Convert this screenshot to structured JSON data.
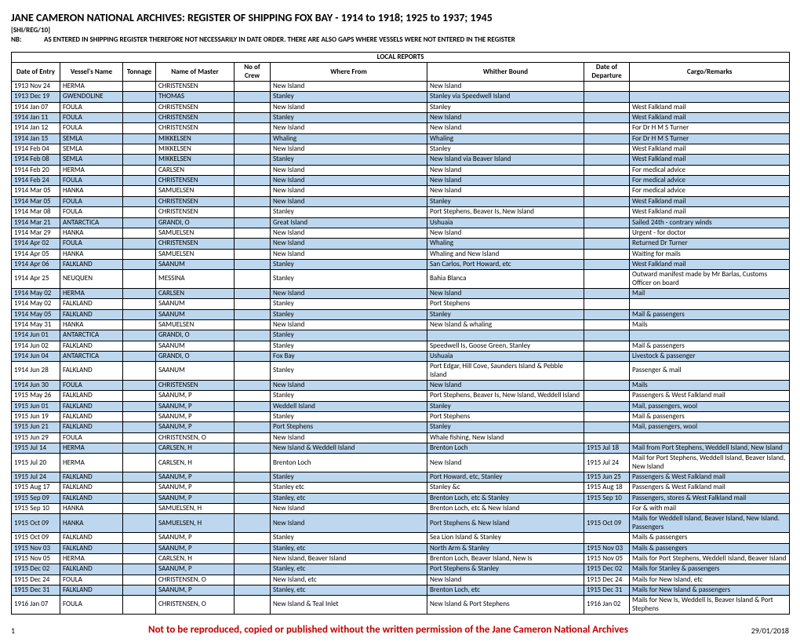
{
  "title": "JANE CAMERON NATIONAL ARCHIVES: REGISTER OF SHIPPING FOX BAY - 1914 to 1918; 1925 to 1937; 1945",
  "ref": "[SHI/REG/10]",
  "note_label": "NB:",
  "note_text": "AS ENTERED IN SHIPPING REGISTER THEREFORE NOT NECESSARILY IN DATE ORDER. THERE ARE ALSO GAPS WHERE VESSELS WERE NOT ENTERED IN THE REGISTER",
  "section_header": "LOCAL REPORTS",
  "columns": [
    "Date of Entry",
    "Vessel's Name",
    "Tonnage",
    "Name of Master",
    "No of Crew",
    "Where From",
    "Whither Bound",
    "Date of Departure",
    "Cargo/Remarks"
  ],
  "stripe_color": "#bdd7ee",
  "rows": [
    [
      "1913 Nov 24",
      "HERMA",
      "",
      "CHRISTENSEN",
      "",
      "New Island",
      "New Island",
      "",
      ""
    ],
    [
      "1913 Dec 19",
      "GWENDOLINE",
      "",
      "THOMAS",
      "",
      "Stanley",
      "Stanley via Speedwell Island",
      "",
      ""
    ],
    [
      "1914 Jan 07",
      "FOULA",
      "",
      "CHRISTENSEN",
      "",
      "New Island",
      "Stanley",
      "",
      "West Falkland mail"
    ],
    [
      "1914 Jan 11",
      "FOULA",
      "",
      "CHRISTENSEN",
      "",
      "Stanley",
      "New Island",
      "",
      "West Falkland mail"
    ],
    [
      "1914 Jan 12",
      "FOULA",
      "",
      "CHRISTENSEN",
      "",
      "New Island",
      "New Island",
      "",
      "For Dr H M S Turner"
    ],
    [
      "1914 Jan 15",
      "SEMLA",
      "",
      "MIKKELSEN",
      "",
      "Whaling",
      "Whaling",
      "",
      "For Dr H M S Turner"
    ],
    [
      "1914 Feb 04",
      "SEMLA",
      "",
      "MIKKELSEN",
      "",
      "New Island",
      "Stanley",
      "",
      "West Falkland mail"
    ],
    [
      "1914 Feb 08",
      "SEMLA",
      "",
      "MIKKELSEN",
      "",
      "Stanley",
      "New Island via Beaver Island",
      "",
      "West Falkland mail"
    ],
    [
      "1914 Feb 20",
      "HERMA",
      "",
      "CARLSEN",
      "",
      "New Island",
      "New Island",
      "",
      "For medical advice"
    ],
    [
      "1914 Feb 24",
      "FOULA",
      "",
      "CHRISTENSEN",
      "",
      "New Island",
      "New Island",
      "",
      "For medical advice"
    ],
    [
      "1914 Mar 05",
      "HANKA",
      "",
      "SAMUELSEN",
      "",
      "New Island",
      "New Island",
      "",
      "For medical advice"
    ],
    [
      "1914 Mar 05",
      "FOULA",
      "",
      "CHRISTENSEN",
      "",
      "New Island",
      "Stanley",
      "",
      "West Falkland mail"
    ],
    [
      "1914 Mar 08",
      "FOULA",
      "",
      "CHRISTENSEN",
      "",
      "Stanley",
      "Port Stephens, Beaver Is, New Island",
      "",
      "West Falkland mail"
    ],
    [
      "1914 Mar 21",
      "ANTARCTICA",
      "",
      "GRANDI, O",
      "",
      "Great Island",
      "Ushuaia",
      "",
      "Sailed 24th - contrary winds"
    ],
    [
      "1914 Mar 29",
      "HANKA",
      "",
      "SAMUELSEN",
      "",
      "New Island",
      "New Island",
      "",
      "Urgent - for doctor"
    ],
    [
      "1914 Apr 02",
      "FOULA",
      "",
      "CHRISTENSEN",
      "",
      "New Island",
      "Whaling",
      "",
      "Returned Dr Turner"
    ],
    [
      "1914 Apr 05",
      "HANKA",
      "",
      "SAMUELSEN",
      "",
      "New Island",
      "Whaling and New Island",
      "",
      "Waiting for mails"
    ],
    [
      "1914 Apr 06",
      "FALKLAND",
      "",
      "SAANUM",
      "",
      "Stanley",
      "San Carlos, Port Howard, etc",
      "",
      "West Falkland mail"
    ],
    [
      "1914 Apr 25",
      "NEUQUEN",
      "",
      "MESSINA",
      "",
      "Stanley",
      "Bahia Blanca",
      "",
      "Outward manifest made by Mr Barlas, Customs Officer on board"
    ],
    [
      "1914 May 02",
      "HERMA",
      "",
      "CARLSEN",
      "",
      "New Island",
      "New Island",
      "",
      "Mail"
    ],
    [
      "1914 May 02",
      "FALKLAND",
      "",
      "SAANUM",
      "",
      "Stanley",
      "Port Stephens",
      "",
      ""
    ],
    [
      "1914 May 05",
      "FALKLAND",
      "",
      "SAANUM",
      "",
      "Stanley",
      "Stanley",
      "",
      "Mail & passengers"
    ],
    [
      "1914 May 31",
      "HANKA",
      "",
      "SAMUELSEN",
      "",
      "New Island",
      "New Island & whaling",
      "",
      "Mails"
    ],
    [
      "1914 Jun 01",
      "ANTARCTICA",
      "",
      "GRANDI, O",
      "",
      "Stanley",
      "",
      "",
      ""
    ],
    [
      "1914 Jun 02",
      "FALKLAND",
      "",
      "SAANUM",
      "",
      "Stanley",
      "Speedwell Is, Goose Green, Stanley",
      "",
      "Mail & passengers"
    ],
    [
      "1914 Jun 04",
      "ANTARCTICA",
      "",
      "GRANDI, O",
      "",
      "Fox Bay",
      "Ushuaia",
      "",
      "Livestock & passenger"
    ],
    [
      "1914 Jun 28",
      "FALKLAND",
      "",
      "SAANUM",
      "",
      "Stanley",
      "Port Edgar, Hill Cove, Saunders Island & Pebble Island",
      "",
      "Passenger & mail"
    ],
    [
      "1914 Jun 30",
      "FOULA",
      "",
      "CHRISTENSEN",
      "",
      "New Island",
      "New Island",
      "",
      "Mails"
    ],
    [
      "1915 May 26",
      "FALKLAND",
      "",
      "SAANUM, P",
      "",
      "Stanley",
      "Port Stephens, Beaver Is, New Island, Weddell Island",
      "",
      "Passengers & West Falkland mail"
    ],
    [
      "1915 Jun 01",
      "FALKLAND",
      "",
      "SAANUM, P",
      "",
      "Weddell Island",
      "Stanley",
      "",
      "Mail, passengers, wool"
    ],
    [
      "1915 Jun 19",
      "FALKLAND",
      "",
      "SAANUM, P",
      "",
      "Stanley",
      "Port Stephens",
      "",
      "Mail & passengers"
    ],
    [
      "1915 Jun 21",
      "FALKLAND",
      "",
      "SAANUM, P",
      "",
      "Port Stephens",
      "Stanley",
      "",
      "Mail, passengers, wool"
    ],
    [
      "1915 Jun 29",
      "FOULA",
      "",
      "CHRISTENSEN, O",
      "",
      "New Island",
      "Whale fishing, New Island",
      "",
      ""
    ],
    [
      "1915 Jul 14",
      "HERMA",
      "",
      "CARLSEN, H",
      "",
      "New Island & Weddell Island",
      "Brenton Loch",
      "1915 Jul 18",
      "Mail from Port Stephens, Weddell Island, New Island"
    ],
    [
      "1915 Jul 20",
      "HERMA",
      "",
      "CARLSEN, H",
      "",
      "Brenton Loch",
      "New Island",
      "1915 Jul 24",
      "Mail for Port Stephens, Weddell Island, Beaver Island, New Island"
    ],
    [
      "1915 Jul 24",
      "FALKLAND",
      "",
      "SAANUM, P",
      "",
      "Stanley",
      "Port Howard, etc, Stanley",
      "1915 Jun 25",
      "Passengers & West Falkland mail"
    ],
    [
      "1915 Aug 17",
      "FALKLAND",
      "",
      "SAANUM, P",
      "",
      "Stanley etc",
      "Stanley &c",
      "1915 Aug 18",
      "Passengers & West Falkland mail"
    ],
    [
      "1915 Sep 09",
      "FALKLAND",
      "",
      "SAANUM, P",
      "",
      "Stanley, etc",
      "Brenton Loch, etc & Stanley",
      "1915 Sep 10",
      "Passengers, stores & West Falkland mail"
    ],
    [
      "1915 Sep 10",
      "HANKA",
      "",
      "SAMUELSEN, H",
      "",
      "New Island",
      "Brenton Loch, etc & New Island",
      "",
      "For & with mail"
    ],
    [
      "1915 Oct 09",
      "HANKA",
      "",
      "SAMUELSEN, H",
      "",
      "New Island",
      "Port Stephens & New Island",
      "1915 Oct 09",
      "Mails for Weddell Island, Beaver Island, New Island. Passengers"
    ],
    [
      "1915 Oct 09",
      "FALKLAND",
      "",
      "SAANUM, P",
      "",
      "Stanley",
      "Sea Lion Island & Stanley",
      "",
      "Mails & passengers"
    ],
    [
      "1915 Nov 03",
      "FALKLAND",
      "",
      "SAANUM, P",
      "",
      "Stanley, etc",
      "North Arm & Stanley",
      "1915 Nov 03",
      "Mails & passengers"
    ],
    [
      "1915 Nov 05",
      "HERMA",
      "",
      "CARLSEN, H",
      "",
      "New Island, Beaver Island",
      "Brenton Loch, Beaver Island, New Is",
      "1915 Nov 05",
      "Mails for Port Stephens, Weddell Island, Beaver Island"
    ],
    [
      "1915 Dec 02",
      "FALKLAND",
      "",
      "SAANUM, P",
      "",
      "Stanley, etc",
      "Port Stephens & Stanley",
      "1915 Dec 02",
      "Mails for Stanley & passengers"
    ],
    [
      "1915 Dec 24",
      "FOULA",
      "",
      "CHRISTENSEN, O",
      "",
      "New Island, etc",
      "New Island",
      "1915 Dec 24",
      "Mails for New Island, etc"
    ],
    [
      "1915 Dec 31",
      "FALKLAND",
      "",
      "SAANUM, P",
      "",
      "Stanley, etc",
      "Brenton Loch, etc",
      "1915 Dec 31",
      "Mails for New Island & passengers"
    ],
    [
      "1916 Jan 07",
      "FOULA",
      "",
      "CHRISTENSEN, O",
      "",
      "New Island & Teal Inlet",
      "New Island & Port Stephens",
      "1916 Jan 02",
      "Mails for New Is, Weddell Is, Beaver Island & Port Stephens"
    ]
  ],
  "footer": {
    "page": "1",
    "copy": "Not to be reproduced, copied or published without the written permission of the Jane Cameron National Archives",
    "date": "29/01/2018"
  }
}
